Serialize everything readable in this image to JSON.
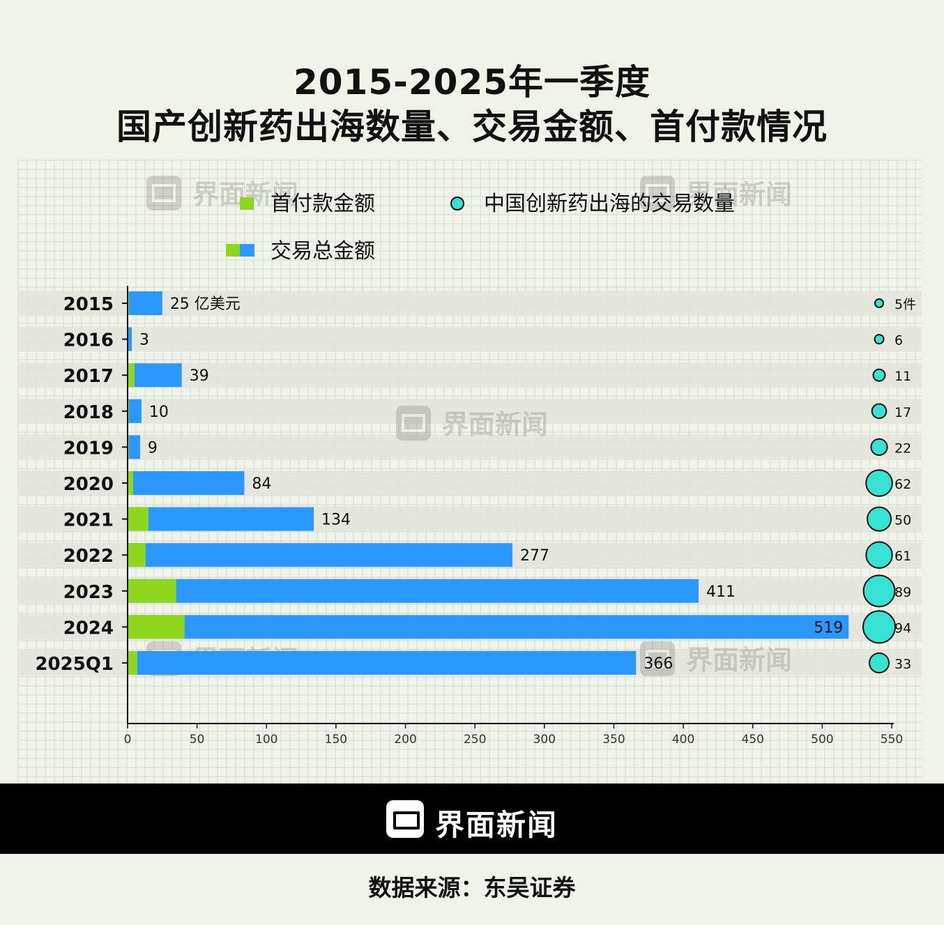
{
  "title_line1": "2015-2025年一季度",
  "title_line2": "国产创新药出海数量、交易金额、首付款情况",
  "watermark": "界面新闻",
  "brand": "界面新闻",
  "source": "数据来源：东吴证券",
  "colors": {
    "upfront": "#8fd61e",
    "total": "#2a98ff",
    "deals": "#36e2d2",
    "background": "#eef2e7",
    "band": "#e3e6dd"
  },
  "chart_data": {
    "type": "bar",
    "orientation": "horizontal",
    "categories": [
      "2015",
      "2016",
      "2017",
      "2018",
      "2019",
      "2020",
      "2021",
      "2022",
      "2023",
      "2024",
      "2025Q1"
    ],
    "series": [
      {
        "name": "首付款金额",
        "values": [
          1,
          0.5,
          5,
          1,
          1,
          4,
          15,
          13,
          35,
          41,
          7
        ]
      },
      {
        "name": "交易总金额",
        "values": [
          25,
          3,
          39,
          10,
          9,
          84,
          134,
          277,
          411,
          519,
          366
        ]
      }
    ],
    "bubble_series": {
      "name": "中国创新药出海的交易数量",
      "values": [
        5,
        6,
        11,
        17,
        22,
        62,
        50,
        61,
        89,
        94,
        33
      ]
    },
    "value_labels": [
      "25 亿美元",
      "3",
      "39",
      "10",
      "9",
      "84",
      "134",
      "277",
      "411",
      "519",
      "366"
    ],
    "bubble_labels": [
      "5件",
      "6",
      "11",
      "17",
      "22",
      "62",
      "50",
      "61",
      "89",
      "94",
      "33"
    ],
    "xticks": [
      0,
      50,
      100,
      150,
      200,
      250,
      300,
      350,
      400,
      450,
      500,
      550
    ],
    "xlim": [
      0,
      550
    ],
    "legend": [
      {
        "label": "首付款金额",
        "marker": "upfront"
      },
      {
        "label": "中国创新药出海的交易数量",
        "marker": "deals"
      },
      {
        "label": "交易总金额",
        "marker": "total"
      }
    ],
    "grid": true,
    "legend_position": "top"
  }
}
